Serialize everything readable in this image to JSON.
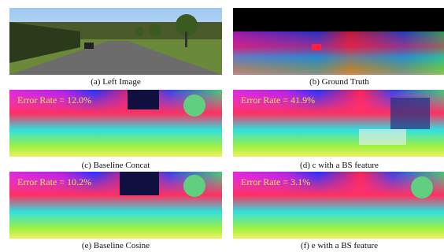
{
  "panels": [
    {
      "caption": "(a) Left Image"
    },
    {
      "caption": "(b) Ground Truth"
    },
    {
      "caption": "(c) Baseline Concat",
      "overlay": "Error Rate = 12.0%"
    },
    {
      "caption": "(d) c with a BS feature",
      "overlay": "Error Rate = 41.9%"
    },
    {
      "caption": "(e) Baseline Cosine",
      "overlay": "Error Rate = 10.2%"
    },
    {
      "caption": "(f) e with a BS feature",
      "overlay": "Error Rate = 3.1%"
    }
  ]
}
